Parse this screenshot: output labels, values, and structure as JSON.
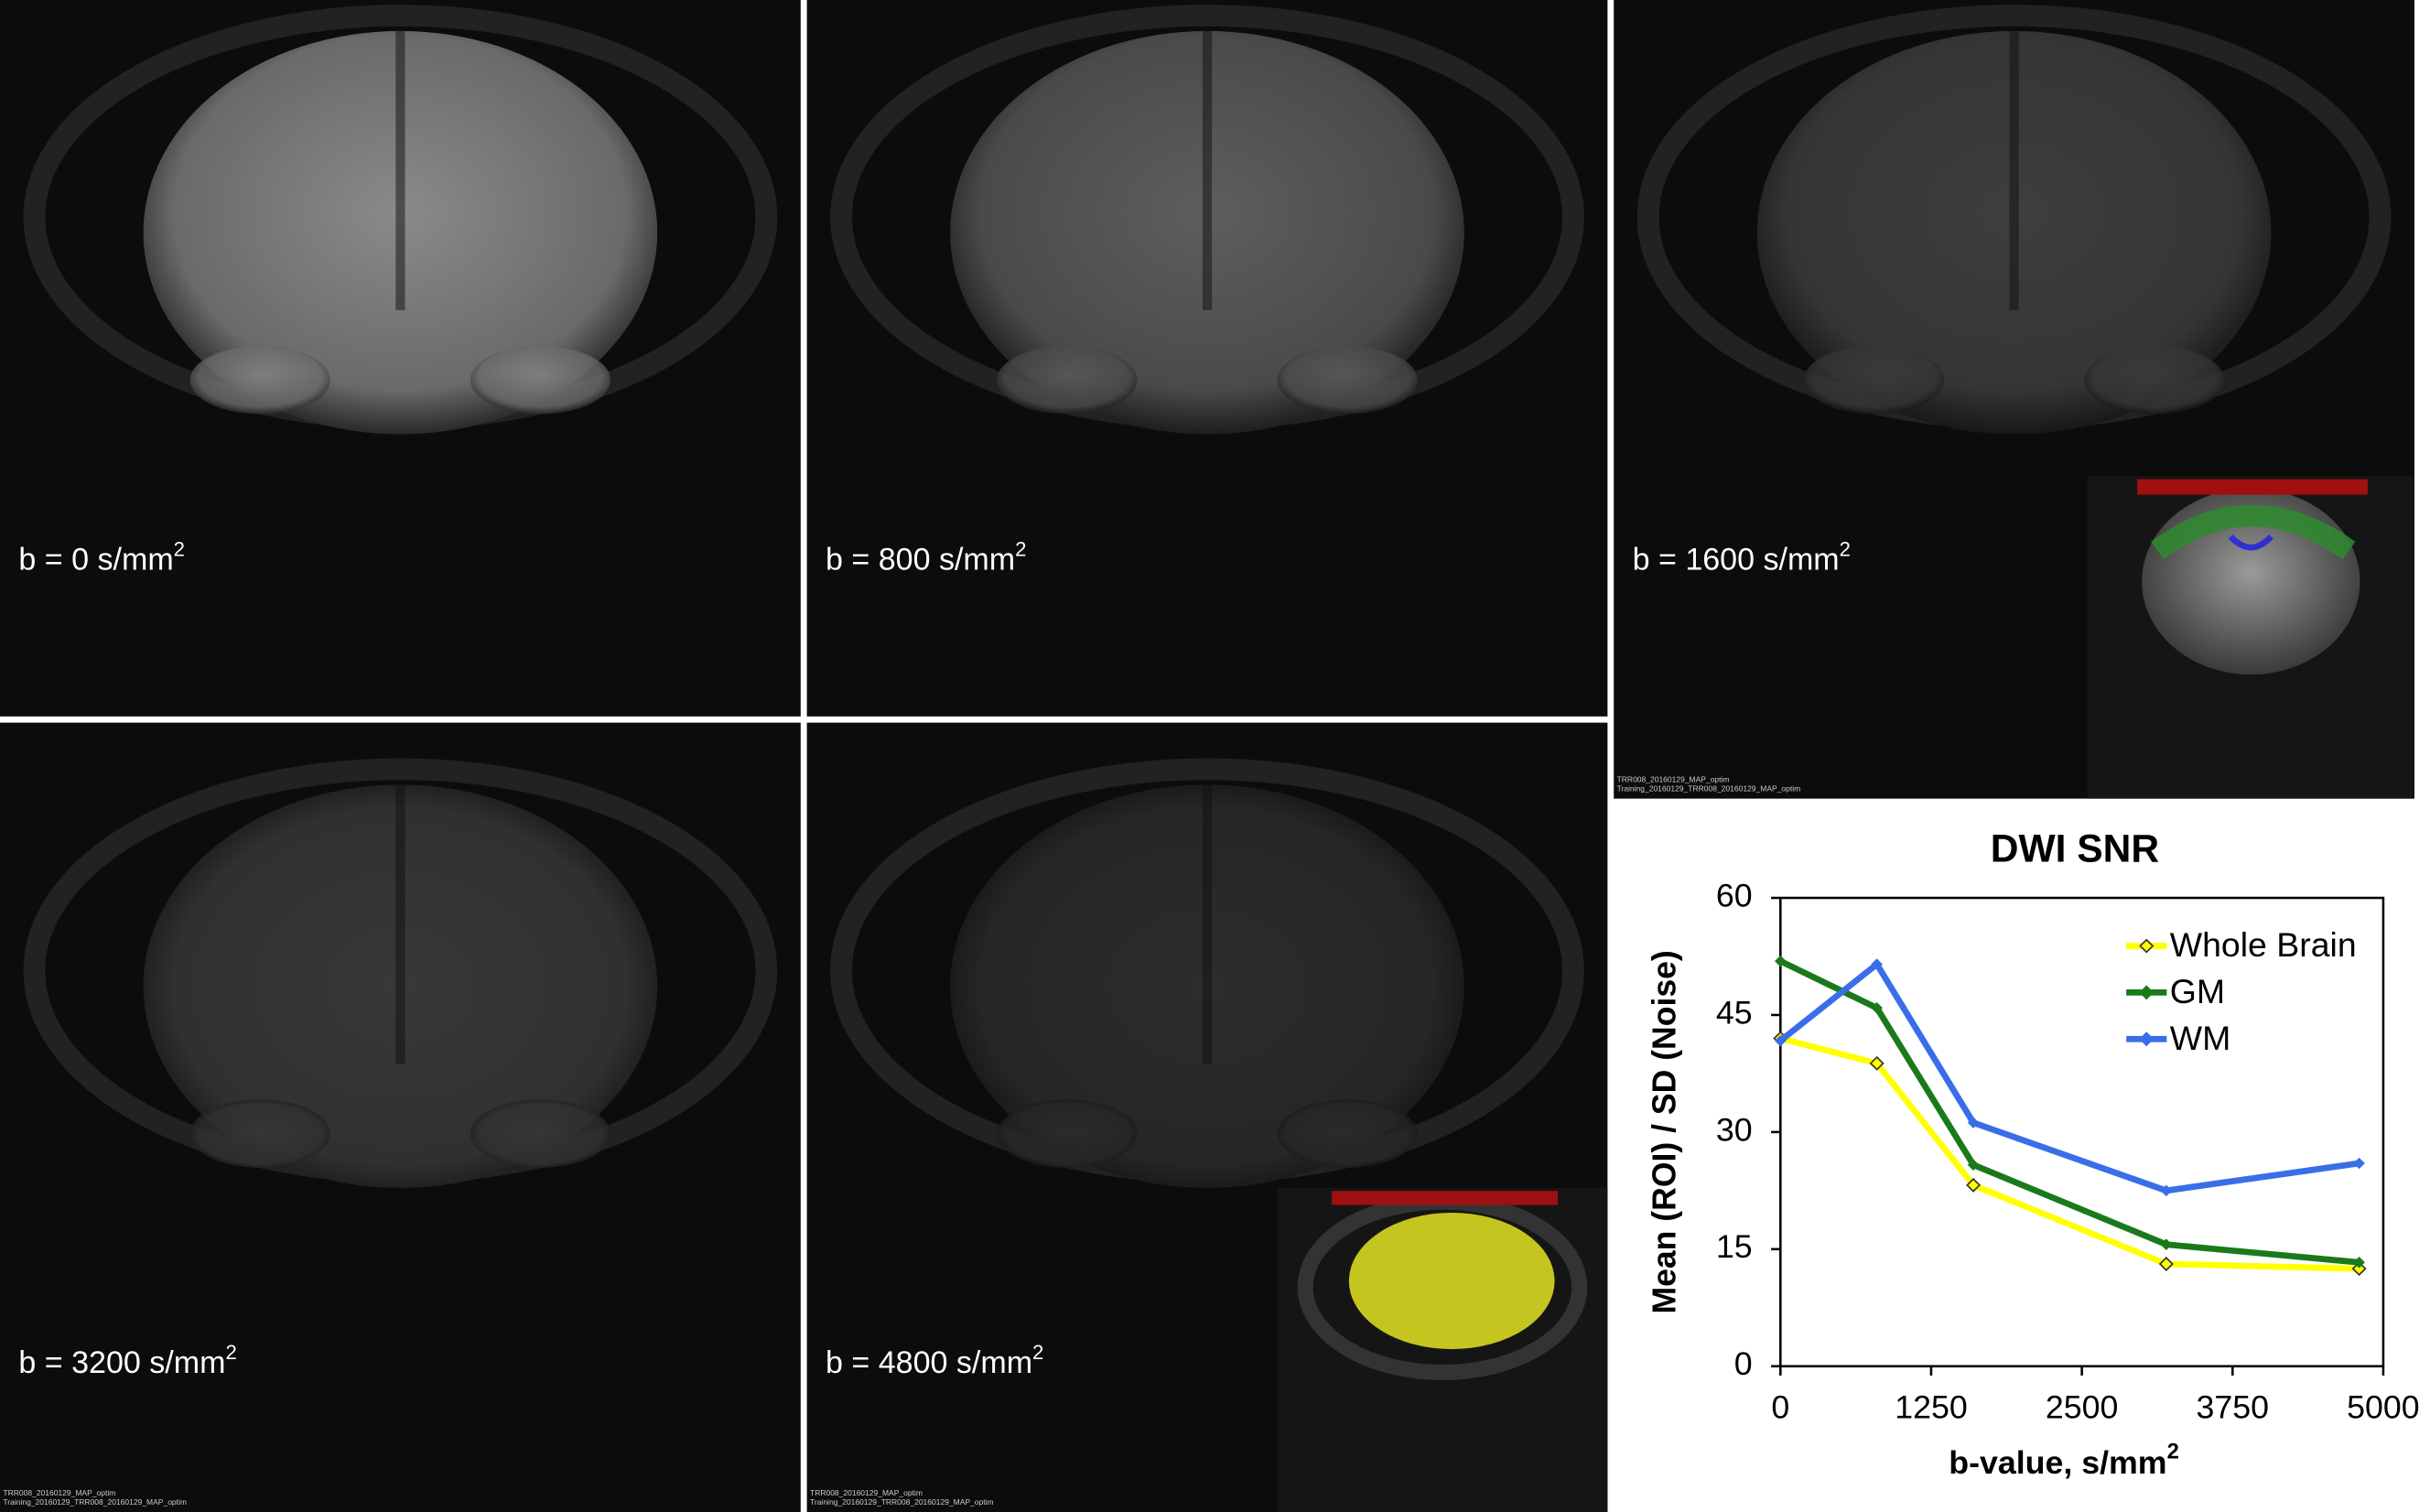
{
  "panels": [
    {
      "label": "b = 0 s/mm",
      "superscript": "2"
    },
    {
      "label": "b = 800 s/mm",
      "superscript": "2"
    },
    {
      "label": "b = 1600 s/mm",
      "superscript": "2",
      "notes": [
        "TRR008_20160129_MAP_optim",
        "Training_20160129_TRR008_20160129_MAP_optim"
      ]
    },
    {
      "label": "b = 3200 s/mm",
      "superscript": "2",
      "notes": [
        "TRR008_20160129_MAP_optim",
        "Training_20160129_TRR008_20160129_MAP_optim"
      ]
    },
    {
      "label": "b = 4800 s/mm",
      "superscript": "2",
      "notes": [
        "TRR008_20160129_MAP_optim",
        "Training_20160129_TRR008_20160129_MAP_optim"
      ]
    }
  ],
  "chart_data": {
    "type": "line",
    "title": "DWI SNR",
    "xlabel": "b-value, s/mm",
    "xlabel_superscript": "2",
    "ylabel": "Mean (ROI) / SD (Noise)",
    "x": [
      0,
      800,
      1600,
      3200,
      4800
    ],
    "series": [
      {
        "name": "Whole Brain",
        "color": "#ffff00",
        "values": [
          42,
          38.8,
          23.2,
          13.1,
          12.5
        ]
      },
      {
        "name": "GM",
        "color": "#1a7a1a",
        "values": [
          51.9,
          45.9,
          25.8,
          15.6,
          13.3
        ]
      },
      {
        "name": "WM",
        "color": "#3a6ee8",
        "values": [
          41.7,
          51.5,
          31.2,
          22.5,
          26
        ]
      }
    ],
    "xlim": [
      0,
      5000
    ],
    "xticks": [
      0,
      1250,
      2500,
      3750,
      5000
    ],
    "ylim": [
      0,
      60
    ],
    "yticks": [
      0,
      15,
      30,
      45,
      60
    ],
    "legend": "upper right"
  }
}
